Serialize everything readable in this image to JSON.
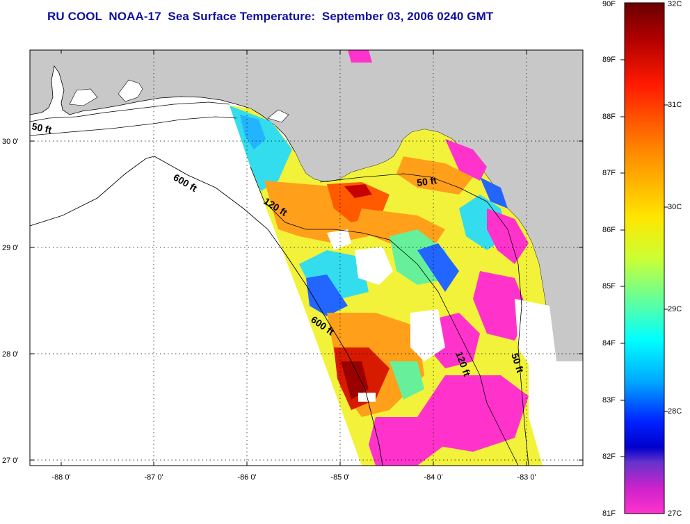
{
  "title": "RU COOL  NOAA-17  Sea Surface Temperature:  September 03, 2006 0240 GMT",
  "map": {
    "x_ticks": [
      "-88 0'",
      "-87 0'",
      "-86 0'",
      "-85 0'",
      "-84 0'",
      "-83 0'"
    ],
    "y_ticks": [
      "30 0'",
      "29 0'",
      "28 0'",
      "27 0'"
    ],
    "contours": {
      "c50_west": "50 ft",
      "c600_north": "600 ft",
      "c120_north": "120 ft",
      "c50_east": "50 ft",
      "c600_south": "600 ft",
      "c120_south": "120 ft",
      "c50_south": "50 ft"
    },
    "colors": {
      "land": "#c8c8c8",
      "ocean": "#ffffff",
      "cloud": "#ff33cc"
    }
  },
  "colorbar": {
    "fahrenheit": [
      "90F",
      "89F",
      "88F",
      "87F",
      "86F",
      "85F",
      "84F",
      "83F",
      "82F",
      "81F"
    ],
    "celsius": [
      "32C",
      "31C",
      "30C",
      "29C",
      "28C",
      "27C"
    ]
  }
}
